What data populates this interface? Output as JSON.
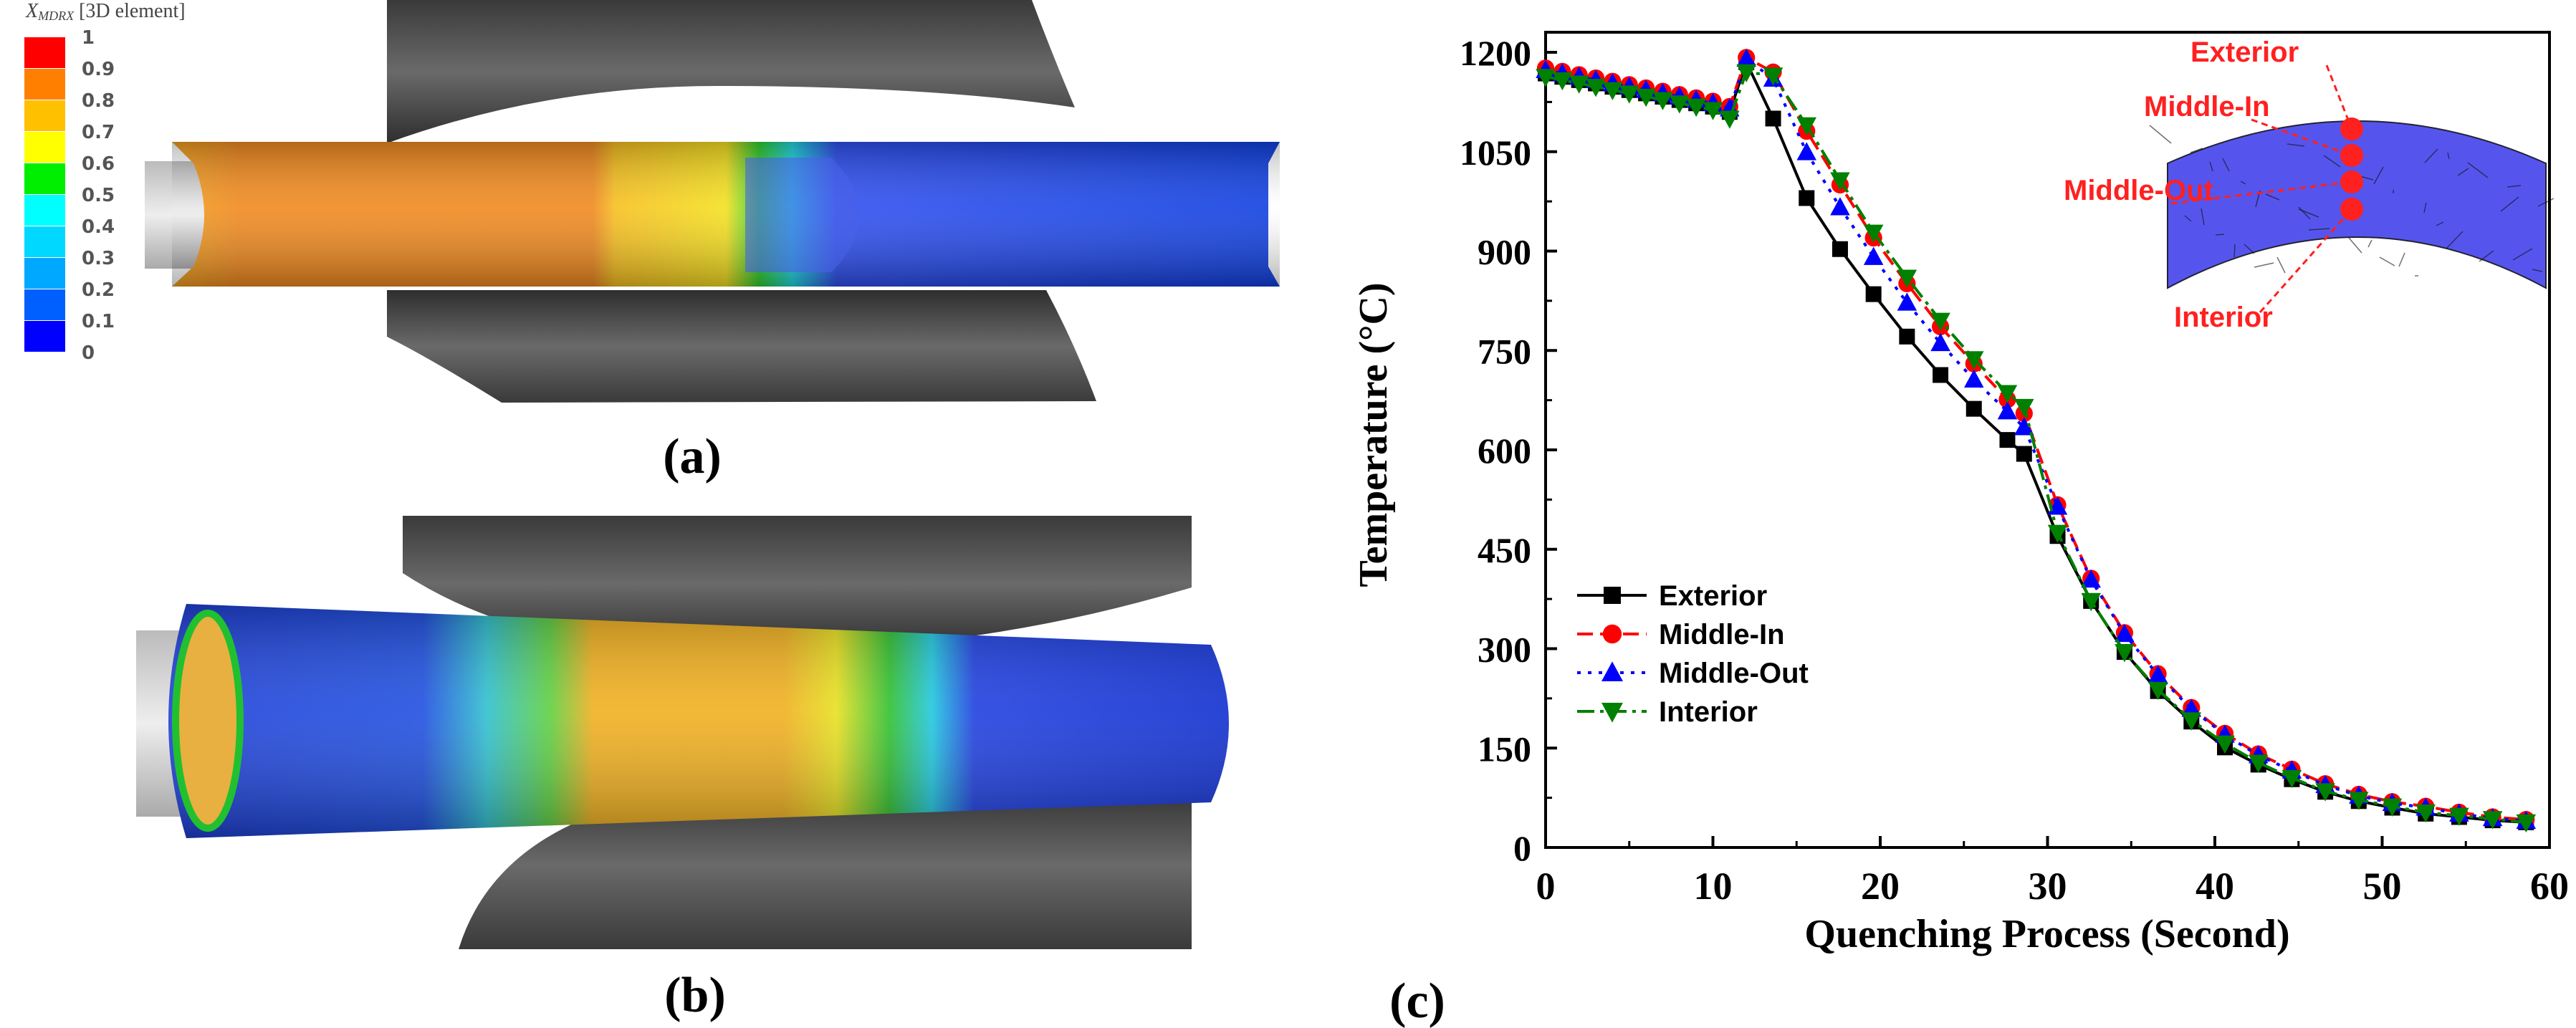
{
  "panels": {
    "a_label": "(a)",
    "b_label": "(b)",
    "c_label": "(c)"
  },
  "colorbar": {
    "title_var": "X",
    "title_sub": "MDRX",
    "title_rest": " [3D element]",
    "ticks": [
      "1",
      "0.9",
      "0.8",
      "0.7",
      "0.6",
      "0.5",
      "0.4",
      "0.3",
      "0.2",
      "0.1",
      "0"
    ],
    "colors": [
      "#ff0000",
      "#ff8000",
      "#ffc000",
      "#ffff00",
      "#00ee00",
      "#00ffff",
      "#00d8ff",
      "#00a8ff",
      "#0060ff",
      "#0000ff"
    ]
  },
  "chart_data": {
    "type": "line",
    "xlabel": "Quenching Process (Second)",
    "ylabel": "Temperature (°C)",
    "xlim": [
      0,
      60
    ],
    "ylim": [
      0,
      1200
    ],
    "xticks": [
      "0",
      "10",
      "20",
      "30",
      "40",
      "50",
      "60"
    ],
    "yticks": [
      "0",
      "150",
      "300",
      "450",
      "600",
      "750",
      "900",
      "1050",
      "1200"
    ],
    "legend_position": "lower-left",
    "x": [
      0,
      1,
      2,
      3,
      4,
      5,
      6,
      7,
      8,
      9,
      10,
      11,
      12,
      13.6,
      15.6,
      17.6,
      19.6,
      21.6,
      23.6,
      25.6,
      27.6,
      28.6,
      30.6,
      32.6,
      34.6,
      36.6,
      38.6,
      40.6,
      42.6,
      44.6,
      46.6,
      48.6,
      50.6,
      52.6,
      54.6,
      56.6,
      58.6
    ],
    "series": [
      {
        "name": "Exterior",
        "color": "#000000",
        "marker": "square",
        "dash": "solid",
        "values": [
          1168,
          1163,
          1158,
          1153,
          1148,
          1143,
          1138,
          1133,
          1128,
          1123,
          1118,
          1110,
          1185,
          1100,
          980,
          903,
          835,
          771,
          713,
          662,
          615,
          594,
          470,
          372,
          295,
          236,
          190,
          151,
          125,
          103,
          84,
          70,
          60,
          51,
          46,
          41,
          38
        ]
      },
      {
        "name": "Middle-In",
        "color": "#ff0000",
        "marker": "circle",
        "dash": "dashed",
        "values": [
          1176,
          1171,
          1166,
          1161,
          1156,
          1151,
          1146,
          1141,
          1136,
          1131,
          1126,
          1118,
          1192,
          1170,
          1081,
          1000,
          920,
          851,
          786,
          730,
          676,
          655,
          517,
          406,
          324,
          262,
          211,
          172,
          141,
          118,
          96,
          80,
          69,
          62,
          53,
          46,
          42
        ]
      },
      {
        "name": "Middle-Out",
        "color": "#0000ff",
        "marker": "triangle-up",
        "dash": "dotted",
        "values": [
          1173,
          1168,
          1163,
          1158,
          1153,
          1148,
          1143,
          1138,
          1133,
          1128,
          1123,
          1115,
          1190,
          1160,
          1049,
          966,
          891,
          822,
          761,
          706,
          658,
          634,
          514,
          404,
          322,
          260,
          209,
          170,
          139,
          116,
          94,
          78,
          67,
          60,
          51,
          44,
          40
        ]
      },
      {
        "name": "Interior",
        "color": "#008000",
        "marker": "triangle-down",
        "dash": "dash-dot",
        "values": [
          1163,
          1158,
          1153,
          1148,
          1143,
          1138,
          1133,
          1128,
          1123,
          1118,
          1113,
          1100,
          1170,
          1165,
          1090,
          1007,
          928,
          860,
          795,
          737,
          686,
          665,
          475,
          372,
          295,
          238,
          192,
          157,
          128,
          105,
          85,
          72,
          62,
          53,
          48,
          43,
          38
        ]
      }
    ],
    "inset": {
      "labels": [
        "Exterior",
        "Middle-In",
        "Middle-Out",
        "Interior"
      ],
      "mesh_color": "#5555ee",
      "point_color": "#ff2020"
    }
  }
}
